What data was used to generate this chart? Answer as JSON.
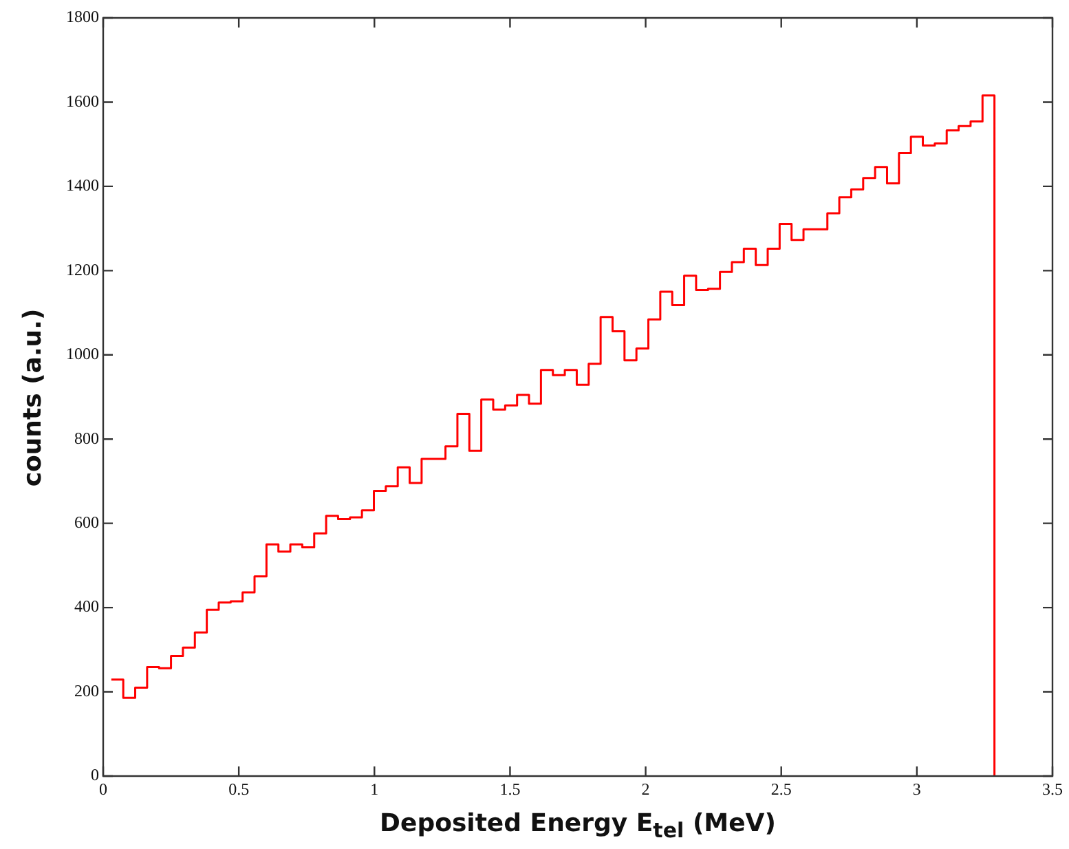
{
  "chart_data": {
    "type": "histogram",
    "xlabel": "Deposited Energy E$_{tel}$ (MeV)",
    "ylabel": "counts (a.u.)",
    "bins": [
      0.03,
      0.074,
      0.118,
      0.162,
      0.206,
      0.25,
      0.294,
      0.338,
      0.382,
      0.426,
      0.47,
      0.514,
      0.558,
      0.602,
      0.646,
      0.69,
      0.734,
      0.778,
      0.822,
      0.866,
      0.91,
      0.954,
      0.998,
      1.042,
      1.086,
      1.13,
      1.174,
      1.218,
      1.262,
      1.306,
      1.35,
      1.394,
      1.438,
      1.482,
      1.526,
      1.57,
      1.614,
      1.658,
      1.702,
      1.746,
      1.79,
      1.834,
      1.878,
      1.922,
      1.966,
      2.01,
      2.054,
      2.098,
      2.142,
      2.186,
      2.23,
      2.274,
      2.318,
      2.362,
      2.406,
      2.45,
      2.494,
      2.538,
      2.582,
      2.626,
      2.67,
      2.714,
      2.758,
      2.802,
      2.846,
      2.89,
      2.934,
      2.978,
      3.022,
      3.066,
      3.11,
      3.154,
      3.198,
      3.242,
      3.286
    ],
    "values": [
      229,
      186,
      210,
      259,
      256,
      285,
      305,
      341,
      395,
      412,
      415,
      436,
      474,
      550,
      533,
      550,
      543,
      576,
      618,
      610,
      614,
      631,
      677,
      688,
      733,
      696,
      753,
      753,
      783,
      860,
      772,
      894,
      870,
      880,
      905,
      884,
      964,
      952,
      964,
      929,
      979,
      1090,
      1056,
      987,
      1015,
      1084,
      1150,
      1118,
      1188,
      1154,
      1157,
      1197,
      1220,
      1252,
      1213,
      1252,
      1311,
      1273,
      1298,
      1298,
      1336,
      1374,
      1393,
      1420,
      1446,
      1407,
      1479,
      1518,
      1497,
      1502,
      1533,
      1543,
      1554,
      1616
    ],
    "color": "#ff0000",
    "xlim": [
      0,
      3.5
    ],
    "xticks": [
      0,
      0.5,
      1,
      1.5,
      2,
      2.5,
      3,
      3.5
    ],
    "ylim": [
      0,
      1800
    ],
    "yticks": [
      0,
      200,
      400,
      600,
      800,
      1000,
      1200,
      1400,
      1600,
      1800
    ],
    "grid": false
  }
}
